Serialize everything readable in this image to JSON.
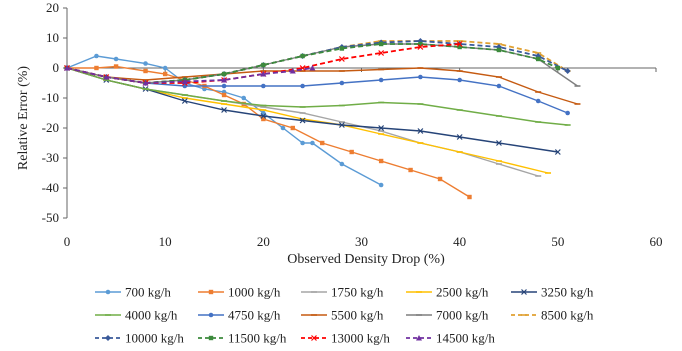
{
  "chart_data": {
    "type": "line",
    "title": "",
    "xlabel": "Observed Density Drop (%)",
    "ylabel": "Relative Error (%)",
    "xlim": [
      0,
      60
    ],
    "ylim": [
      -50,
      20
    ],
    "xticks": [
      0,
      10,
      20,
      30,
      40,
      50,
      60
    ],
    "yticks": [
      -50,
      -40,
      -30,
      -20,
      -10,
      0,
      10,
      20
    ],
    "grid": false,
    "legend_position": "bottom",
    "series": [
      {
        "name": "700 kg/h",
        "color": "#5b9bd5",
        "dash": "solid",
        "marker": "circle",
        "x": [
          0,
          3,
          5,
          8,
          10,
          12,
          14,
          16,
          18,
          20,
          22,
          24,
          25,
          28,
          32
        ],
        "y": [
          0,
          4,
          3,
          1.5,
          0,
          -5,
          -7,
          -8,
          -10,
          -15,
          -20,
          -25,
          -25,
          -32,
          -39
        ]
      },
      {
        "name": "1000 kg/h",
        "color": "#ed7d31",
        "dash": "solid",
        "marker": "square",
        "x": [
          0,
          3,
          5,
          8,
          10,
          12,
          14,
          16,
          18,
          20,
          23,
          26,
          29,
          32,
          35,
          38,
          41
        ],
        "y": [
          0,
          0,
          0.5,
          -1,
          -2,
          -4,
          -6,
          -9,
          -12,
          -17,
          -20,
          -25,
          -28,
          -31,
          -34,
          -37,
          -43
        ]
      },
      {
        "name": "1750 kg/h",
        "color": "#a5a5a5",
        "dash": "solid",
        "marker": "dash",
        "x": [
          0,
          4,
          8,
          12,
          16,
          20,
          24,
          28,
          32,
          36,
          40,
          44,
          48
        ],
        "y": [
          0,
          -4,
          -7,
          -9,
          -11,
          -13,
          -15,
          -18,
          -21,
          -25,
          -28,
          -32,
          -36
        ]
      },
      {
        "name": "2500 kg/h",
        "color": "#ffc000",
        "dash": "solid",
        "marker": "dash",
        "x": [
          0,
          4,
          8,
          12,
          16,
          20,
          24,
          28,
          32,
          36,
          40,
          44,
          49
        ],
        "y": [
          0,
          -4,
          -7,
          -10,
          -12,
          -14,
          -17,
          -19,
          -22,
          -25,
          -28,
          -31,
          -35
        ]
      },
      {
        "name": "3250 kg/h",
        "color": "#264478",
        "dash": "solid",
        "marker": "x",
        "x": [
          0,
          4,
          8,
          12,
          16,
          20,
          24,
          28,
          32,
          36,
          40,
          44,
          50
        ],
        "y": [
          0,
          -4,
          -7,
          -11,
          -14,
          -16,
          -17.5,
          -19,
          -20,
          -21,
          -23,
          -25,
          -28
        ]
      },
      {
        "name": "4000 kg/h",
        "color": "#70ad47",
        "dash": "solid",
        "marker": "dash",
        "x": [
          0,
          4,
          8,
          12,
          16,
          20,
          24,
          28,
          32,
          36,
          40,
          44,
          48,
          51
        ],
        "y": [
          0,
          -4,
          -7,
          -9,
          -11,
          -12.5,
          -13,
          -12.5,
          -11.5,
          -12,
          -14,
          -16,
          -18,
          -19
        ]
      },
      {
        "name": "4750 kg/h",
        "color": "#4472c4",
        "dash": "solid",
        "marker": "circle",
        "x": [
          0,
          4,
          8,
          12,
          16,
          20,
          24,
          28,
          32,
          36,
          40,
          44,
          48,
          51
        ],
        "y": [
          0,
          -3,
          -5,
          -6,
          -6,
          -6,
          -6,
          -5,
          -4,
          -3,
          -4,
          -6,
          -11,
          -15
        ]
      },
      {
        "name": "5500 kg/h",
        "color": "#c55a11",
        "dash": "solid",
        "marker": "dash",
        "x": [
          0,
          4,
          8,
          12,
          16,
          20,
          24,
          28,
          32,
          36,
          40,
          44,
          48,
          52
        ],
        "y": [
          0,
          -3,
          -4,
          -3,
          -2,
          -1,
          -1,
          -1,
          -0.5,
          0,
          -1,
          -3,
          -8,
          -12
        ]
      },
      {
        "name": "7000 kg/h",
        "color": "#7f7f7f",
        "dash": "solid",
        "marker": "dash",
        "x": [
          0,
          4,
          8,
          12,
          16,
          20,
          24,
          28,
          32,
          36,
          40,
          44,
          48,
          52
        ],
        "y": [
          0,
          -3,
          -5,
          -4,
          -2,
          1,
          4,
          7,
          8,
          8,
          7,
          6,
          3,
          -6
        ]
      },
      {
        "name": "8500 kg/h",
        "color": "#e0a030",
        "dash": "dash",
        "marker": "dash",
        "x": [
          0,
          4,
          8,
          12,
          16,
          20,
          24,
          28,
          32,
          36,
          40,
          44,
          48,
          51
        ],
        "y": [
          0,
          -3,
          -5,
          -4,
          -2,
          1,
          4,
          7,
          9,
          9,
          9,
          8,
          5,
          -1
        ]
      },
      {
        "name": "10000 kg/h",
        "color": "#3a5a9a",
        "dash": "dash",
        "marker": "diamond",
        "x": [
          0,
          4,
          8,
          12,
          16,
          20,
          24,
          28,
          32,
          36,
          40,
          44,
          48,
          51
        ],
        "y": [
          0,
          -3,
          -5,
          -4,
          -2,
          1,
          4,
          7,
          8.5,
          9,
          8,
          7,
          4,
          -1
        ]
      },
      {
        "name": "11500 kg/h",
        "color": "#3c8a3c",
        "dash": "dash",
        "marker": "square",
        "x": [
          0,
          4,
          8,
          12,
          16,
          20,
          24,
          28,
          32,
          36,
          40,
          44,
          48,
          50
        ],
        "y": [
          0,
          -3,
          -5,
          -4,
          -2,
          1,
          4,
          6.5,
          8,
          8,
          7,
          6,
          3,
          0
        ]
      },
      {
        "name": "13000 kg/h",
        "color": "#ff0000",
        "dash": "dash",
        "marker": "x",
        "x": [
          0,
          4,
          8,
          12,
          16,
          20,
          24,
          28,
          32,
          36,
          40
        ],
        "y": [
          0,
          -3,
          -5,
          -5,
          -4,
          -2,
          0,
          3,
          5,
          7,
          8
        ]
      },
      {
        "name": "14500 kg/h",
        "color": "#7030a0",
        "dash": "dash",
        "marker": "triangle",
        "x": [
          0,
          4,
          8,
          12,
          16,
          20,
          23,
          25
        ],
        "y": [
          0,
          -3,
          -5,
          -4.5,
          -4,
          -2,
          -1,
          0
        ]
      }
    ]
  }
}
